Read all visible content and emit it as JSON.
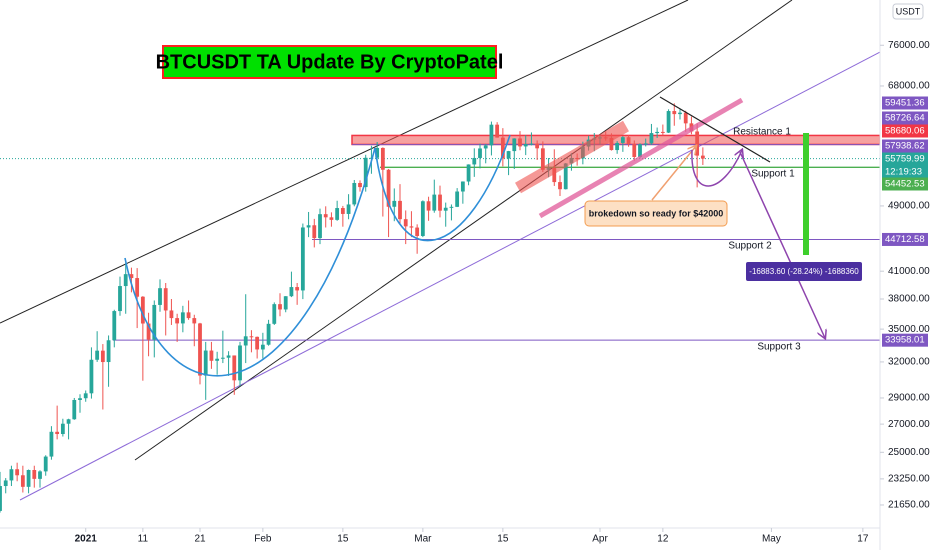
{
  "chart_data": {
    "type": "candlestick",
    "title": "BTCUSDT TA Update By CryptoPatel",
    "currency": "USDT",
    "log": true,
    "grid": false,
    "up_color": "#26a69a",
    "down_color": "#ef5350",
    "ylim": [
      20330,
      86000
    ],
    "yticks": [
      {
        "value": 21650,
        "label": "21650.00"
      },
      {
        "value": 23250,
        "label": "23250.00"
      },
      {
        "value": 25000,
        "label": "25000.00"
      },
      {
        "value": 27000,
        "label": "27000.00"
      },
      {
        "value": 29000,
        "label": "29000.00"
      },
      {
        "value": 32000,
        "label": "32000.00"
      },
      {
        "value": 35000,
        "label": "35000.00"
      },
      {
        "value": 38000,
        "label": "38000.00"
      },
      {
        "value": 41000,
        "label": "41000.00"
      },
      {
        "value": 49000,
        "label": "49000.00"
      },
      {
        "value": 68000,
        "label": "68000.00"
      },
      {
        "value": 76000,
        "label": "76000.00"
      }
    ],
    "xlim": [
      "2020-12-17",
      "2021-05-20"
    ],
    "xticks": [
      {
        "value": "2021-01-01",
        "label": "2021"
      },
      {
        "value": "2021-01-11",
        "label": "11"
      },
      {
        "value": "2021-01-21",
        "label": "21"
      },
      {
        "value": "2021-02-01",
        "label": "Feb"
      },
      {
        "value": "2021-02-15",
        "label": "15"
      },
      {
        "value": "2021-03-01",
        "label": "Mar"
      },
      {
        "value": "2021-03-15",
        "label": "15"
      },
      {
        "value": "2021-04-01",
        "label": "Apr"
      },
      {
        "value": "2021-04-12",
        "label": "12"
      },
      {
        "value": "2021-05-01",
        "label": "May"
      },
      {
        "value": "2021-05-17",
        "label": "17"
      }
    ],
    "x": [
      "2020-12-17",
      "2020-12-18",
      "2020-12-19",
      "2020-12-20",
      "2020-12-21",
      "2020-12-22",
      "2020-12-23",
      "2020-12-24",
      "2020-12-25",
      "2020-12-26",
      "2020-12-27",
      "2020-12-28",
      "2020-12-29",
      "2020-12-30",
      "2020-12-31",
      "2021-01-01",
      "2021-01-02",
      "2021-01-03",
      "2021-01-04",
      "2021-01-05",
      "2021-01-06",
      "2021-01-07",
      "2021-01-08",
      "2021-01-09",
      "2021-01-10",
      "2021-01-11",
      "2021-01-12",
      "2021-01-13",
      "2021-01-14",
      "2021-01-15",
      "2021-01-16",
      "2021-01-17",
      "2021-01-18",
      "2021-01-19",
      "2021-01-20",
      "2021-01-21",
      "2021-01-22",
      "2021-01-23",
      "2021-01-24",
      "2021-01-25",
      "2021-01-26",
      "2021-01-27",
      "2021-01-28",
      "2021-01-29",
      "2021-01-30",
      "2021-01-31",
      "2021-02-01",
      "2021-02-02",
      "2021-02-03",
      "2021-02-04",
      "2021-02-05",
      "2021-02-06",
      "2021-02-07",
      "2021-02-08",
      "2021-02-09",
      "2021-02-10",
      "2021-02-11",
      "2021-02-12",
      "2021-02-13",
      "2021-02-14",
      "2021-02-15",
      "2021-02-16",
      "2021-02-17",
      "2021-02-18",
      "2021-02-19",
      "2021-02-20",
      "2021-02-21",
      "2021-02-22",
      "2021-02-23",
      "2021-02-24",
      "2021-02-25",
      "2021-02-26",
      "2021-02-27",
      "2021-02-28",
      "2021-03-01",
      "2021-03-02",
      "2021-03-03",
      "2021-03-04",
      "2021-03-05",
      "2021-03-06",
      "2021-03-07",
      "2021-03-08",
      "2021-03-09",
      "2021-03-10",
      "2021-03-11",
      "2021-03-12",
      "2021-03-13",
      "2021-03-14",
      "2021-03-15",
      "2021-03-16",
      "2021-03-17",
      "2021-03-18",
      "2021-03-19",
      "2021-03-20",
      "2021-03-21",
      "2021-03-22",
      "2021-03-23",
      "2021-03-24",
      "2021-03-25",
      "2021-03-26",
      "2021-03-27",
      "2021-03-28",
      "2021-03-29",
      "2021-03-30",
      "2021-03-31",
      "2021-04-01",
      "2021-04-02",
      "2021-04-03",
      "2021-04-04",
      "2021-04-05",
      "2021-04-06",
      "2021-04-07",
      "2021-04-08",
      "2021-04-09",
      "2021-04-10",
      "2021-04-11",
      "2021-04-12",
      "2021-04-13",
      "2021-04-14",
      "2021-04-15",
      "2021-04-16",
      "2021-04-17",
      "2021-04-18",
      "2021-04-19"
    ],
    "ohlc": [
      [
        21300,
        23700,
        21200,
        22800
      ],
      [
        22800,
        23300,
        22350,
        23150
      ],
      [
        23150,
        24100,
        22800,
        23870
      ],
      [
        23870,
        24300,
        23100,
        23480
      ],
      [
        23480,
        24100,
        22400,
        22750
      ],
      [
        22750,
        23850,
        22350,
        23820
      ],
      [
        23820,
        24100,
        22700,
        23250
      ],
      [
        23250,
        23800,
        22700,
        23730
      ],
      [
        23730,
        24800,
        23450,
        24710
      ],
      [
        24710,
        26850,
        24500,
        26440
      ],
      [
        26440,
        28400,
        25900,
        26280
      ],
      [
        26280,
        27400,
        26100,
        27030
      ],
      [
        27030,
        27400,
        25900,
        27360
      ],
      [
        27360,
        29000,
        27320,
        28840
      ],
      [
        28840,
        29300,
        27850,
        28980
      ],
      [
        28980,
        29600,
        28700,
        29370
      ],
      [
        29370,
        33300,
        28950,
        32190
      ],
      [
        32190,
        34800,
        32000,
        33000
      ],
      [
        33000,
        33600,
        28100,
        31990
      ],
      [
        31990,
        34400,
        29900,
        33950
      ],
      [
        33950,
        36900,
        33300,
        36770
      ],
      [
        36770,
        40400,
        36300,
        39370
      ],
      [
        39370,
        41950,
        36500,
        40670
      ],
      [
        40670,
        41400,
        38700,
        40240
      ],
      [
        40240,
        41350,
        35100,
        38240
      ],
      [
        38240,
        38300,
        30400,
        35540
      ],
      [
        35540,
        36600,
        32500,
        34010
      ],
      [
        34010,
        37850,
        32400,
        37390
      ],
      [
        37390,
        40100,
        36700,
        39140
      ],
      [
        39140,
        39700,
        34400,
        36830
      ],
      [
        36830,
        38000,
        35400,
        36070
      ],
      [
        36070,
        36500,
        33800,
        35550
      ],
      [
        35550,
        37300,
        34700,
        36640
      ],
      [
        36640,
        37850,
        35900,
        36070
      ],
      [
        36070,
        36400,
        33400,
        35550
      ],
      [
        35550,
        35600,
        30100,
        30830
      ],
      [
        30830,
        33800,
        28850,
        33010
      ],
      [
        33010,
        33800,
        31400,
        32100
      ],
      [
        32100,
        32900,
        30900,
        32280
      ],
      [
        32280,
        34850,
        31900,
        32370
      ],
      [
        32370,
        32950,
        30800,
        32570
      ],
      [
        32570,
        32570,
        29250,
        30430
      ],
      [
        30430,
        33800,
        29950,
        33470
      ],
      [
        33470,
        38500,
        31900,
        34320
      ],
      [
        34320,
        34900,
        32850,
        34270
      ],
      [
        34270,
        34300,
        32300,
        33110
      ],
      [
        33110,
        34650,
        32300,
        33540
      ],
      [
        33540,
        35900,
        33450,
        35510
      ],
      [
        35510,
        37650,
        35400,
        37470
      ],
      [
        37470,
        38600,
        36250,
        36930
      ],
      [
        36930,
        38300,
        36650,
        38290
      ],
      [
        38290,
        40950,
        38200,
        39260
      ],
      [
        39260,
        39700,
        37400,
        38900
      ],
      [
        38900,
        46700,
        37990,
        46200
      ],
      [
        46200,
        48200,
        45000,
        46480
      ],
      [
        46480,
        47300,
        43750,
        44880
      ],
      [
        44880,
        48650,
        44150,
        47910
      ],
      [
        47910,
        48950,
        46200,
        47500
      ],
      [
        47500,
        48150,
        46300,
        47170
      ],
      [
        47170,
        49700,
        47050,
        48720
      ],
      [
        48720,
        49000,
        46300,
        47940
      ],
      [
        47940,
        50600,
        47250,
        49200
      ],
      [
        49200,
        52600,
        48950,
        52170
      ],
      [
        52170,
        52550,
        50950,
        51590
      ],
      [
        51590,
        56350,
        50950,
        55890
      ],
      [
        55890,
        57750,
        53500,
        55890
      ],
      [
        55890,
        58350,
        55500,
        57410
      ],
      [
        57410,
        57500,
        47600,
        54090
      ],
      [
        54090,
        54200,
        45000,
        48890
      ],
      [
        48890,
        51400,
        47000,
        49680
      ],
      [
        49680,
        52000,
        46700,
        47260
      ],
      [
        47260,
        48400,
        44150,
        46340
      ],
      [
        46340,
        48300,
        45000,
        46190
      ],
      [
        46190,
        46600,
        43000,
        45140
      ],
      [
        45140,
        49750,
        45000,
        49630
      ],
      [
        49630,
        50250,
        47050,
        48380
      ],
      [
        48380,
        52650,
        48100,
        50540
      ],
      [
        50540,
        51800,
        47500,
        48370
      ],
      [
        48370,
        49450,
        46300,
        48760
      ],
      [
        48760,
        49200,
        47100,
        48880
      ],
      [
        48880,
        51450,
        48850,
        50970
      ],
      [
        50970,
        52400,
        49300,
        52380
      ],
      [
        52380,
        54900,
        51850,
        54880
      ],
      [
        54880,
        57350,
        53050,
        55860
      ],
      [
        55860,
        58100,
        54300,
        57330
      ],
      [
        57330,
        58050,
        55050,
        57810
      ],
      [
        57810,
        61700,
        56250,
        61180
      ],
      [
        61180,
        61600,
        59050,
        59060
      ],
      [
        59060,
        60600,
        54600,
        55780
      ],
      [
        55780,
        56950,
        53300,
        56920
      ],
      [
        56920,
        58950,
        54200,
        58920
      ],
      [
        58920,
        60100,
        57050,
        57650
      ],
      [
        57650,
        59450,
        56300,
        58030
      ],
      [
        58030,
        59900,
        57800,
        58100
      ],
      [
        58100,
        58600,
        55550,
        57350
      ],
      [
        57350,
        58450,
        53750,
        54080
      ],
      [
        54080,
        55850,
        53000,
        54340
      ],
      [
        54340,
        57200,
        51750,
        52300
      ],
      [
        52300,
        53250,
        50350,
        51290
      ],
      [
        51290,
        55100,
        51250,
        55030
      ],
      [
        55030,
        56600,
        53950,
        55860
      ],
      [
        55860,
        56550,
        54700,
        55780
      ],
      [
        55780,
        58400,
        54900,
        57630
      ],
      [
        57630,
        59350,
        57000,
        58730
      ],
      [
        58730,
        59800,
        56900,
        58920
      ],
      [
        58920,
        59450,
        57950,
        59090
      ],
      [
        59090,
        60050,
        58550,
        59000
      ],
      [
        59000,
        59750,
        57000,
        57080
      ],
      [
        57080,
        58500,
        56500,
        58200
      ],
      [
        58200,
        59300,
        56800,
        59120
      ],
      [
        59120,
        59450,
        57600,
        58020
      ],
      [
        58020,
        58600,
        55450,
        56010
      ],
      [
        56010,
        58150,
        55800,
        57990
      ],
      [
        57990,
        58900,
        57650,
        58130
      ],
      [
        58130,
        61300,
        57900,
        59790
      ],
      [
        59790,
        60700,
        59000,
        59980
      ],
      [
        59980,
        61200,
        59400,
        59860
      ],
      [
        59860,
        63800,
        59800,
        63500
      ],
      [
        63500,
        64850,
        61000,
        62970
      ],
      [
        62970,
        63800,
        62050,
        63220
      ],
      [
        63220,
        63550,
        60000,
        61400
      ],
      [
        61400,
        62550,
        59600,
        60050
      ],
      [
        60050,
        61400,
        51550,
        56220
      ],
      [
        56220,
        57500,
        54800,
        55759.99
      ]
    ],
    "levels": [
      {
        "value": 59451.36,
        "color": "#7e57c2"
      },
      {
        "value": 58726.64,
        "color": "#7e57c2"
      },
      {
        "value": 58680.06,
        "color": "#f23645"
      },
      {
        "value": 57938.62,
        "color": "#7e57c2"
      },
      {
        "value": 55759.99,
        "color": "#26a69a"
      },
      {
        "value": 54452.53,
        "color": "#4caf50"
      },
      {
        "value": 44712.58,
        "color": "#7e57c2"
      },
      {
        "value": 33958.01,
        "color": "#7e57c2"
      }
    ],
    "countdown": "12:19:33",
    "labels": [
      "Resistance 1",
      "Support 1",
      "Support 2",
      "Support 3"
    ],
    "callout": "brokedown so ready for $42000",
    "measure": "-16883.60 (-28.24%) -1688360"
  }
}
